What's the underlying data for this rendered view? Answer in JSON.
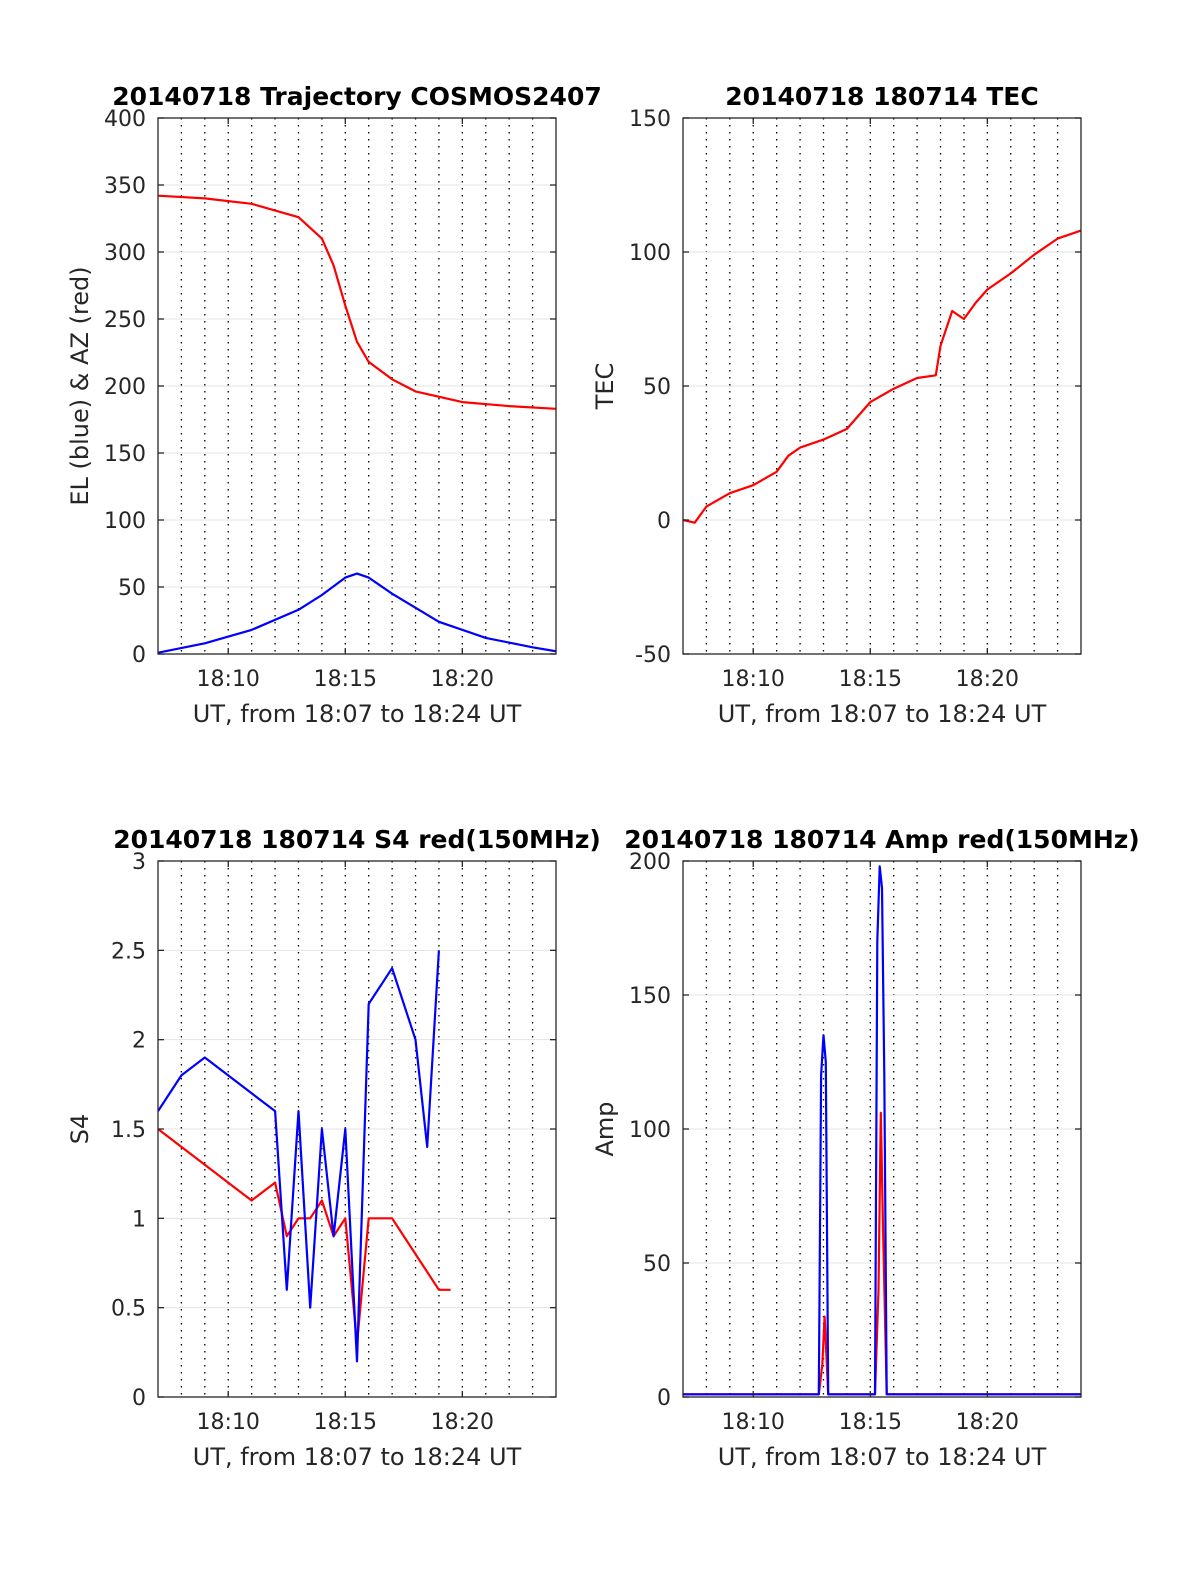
{
  "chart_data": [
    {
      "type": "line",
      "title": "20140718 Trajectory COSMOS2407",
      "xlabel": "UT, from 18:07 to 18:24 UT",
      "ylabel": "EL (blue) & AZ (red)",
      "xlim": [
        0,
        17
      ],
      "ylim": [
        0,
        400
      ],
      "xticks": [
        3,
        8,
        13
      ],
      "xticklabels": [
        "18:10",
        "18:15",
        "18:20"
      ],
      "yticks": [
        0,
        50,
        100,
        150,
        200,
        250,
        300,
        350,
        400
      ],
      "yticklabels": [
        "0",
        "50",
        "100",
        "150",
        "200",
        "250",
        "300",
        "350",
        "400"
      ],
      "grid": "dotted vertical lines every minute",
      "series": [
        {
          "color": "#ff0000",
          "x": [
            0,
            2,
            4,
            6,
            7,
            7.5,
            8,
            8.5,
            9,
            10,
            11,
            13,
            15,
            17
          ],
          "values": [
            342,
            340,
            336,
            326,
            310,
            290,
            260,
            233,
            218,
            205,
            196,
            188,
            185,
            183
          ]
        },
        {
          "color": "#0000ff",
          "x": [
            0,
            2,
            4,
            6,
            7,
            8,
            8.5,
            9,
            10,
            12,
            14,
            16,
            17
          ],
          "values": [
            1,
            8,
            18,
            33,
            44,
            57,
            60,
            57,
            45,
            24,
            12,
            5,
            2
          ]
        }
      ]
    },
    {
      "type": "line",
      "title": "20140718 180714 TEC",
      "xlabel": "UT, from 18:07 to 18:24 UT",
      "ylabel": "TEC",
      "xlim": [
        0,
        17
      ],
      "ylim": [
        -50,
        150
      ],
      "xticks": [
        3,
        8,
        13
      ],
      "xticklabels": [
        "18:10",
        "18:15",
        "18:20"
      ],
      "yticks": [
        -50,
        0,
        50,
        100,
        150
      ],
      "yticklabels": [
        "-50",
        "0",
        "50",
        "100",
        "150"
      ],
      "grid": "dotted vertical lines every minute",
      "series": [
        {
          "color": "#ff0000",
          "x": [
            0,
            0.5,
            1,
            2,
            3,
            4,
            4.5,
            5,
            6,
            7,
            8,
            9,
            10,
            10.8,
            11,
            11.5,
            12,
            12.5,
            13,
            14,
            15,
            16,
            17
          ],
          "values": [
            0,
            -1,
            5,
            10,
            13,
            18,
            24,
            27,
            30,
            34,
            44,
            49,
            53,
            54,
            65,
            78,
            75,
            81,
            86,
            92,
            99,
            105,
            108
          ]
        }
      ]
    },
    {
      "type": "line",
      "title": "20140718 180714 S4 red(150MHz)",
      "xlabel": "UT, from 18:07 to 18:24 UT",
      "ylabel": "S4",
      "xlim": [
        0,
        17
      ],
      "ylim": [
        0,
        3
      ],
      "xticks": [
        3,
        8,
        13
      ],
      "xticklabels": [
        "18:10",
        "18:15",
        "18:20"
      ],
      "yticks": [
        0,
        0.5,
        1,
        1.5,
        2,
        2.5,
        3
      ],
      "yticklabels": [
        "0",
        "0.5",
        "1",
        "1.5",
        "2",
        "2.5",
        "3"
      ],
      "grid": "dotted vertical lines every minute",
      "series": [
        {
          "color": "#ff0000",
          "x": [
            0,
            1,
            2,
            3,
            4,
            5,
            5.5,
            6,
            6.5,
            7,
            7.5,
            8,
            8.5,
            9,
            10,
            11,
            12,
            12.5
          ],
          "values": [
            1.5,
            1.4,
            1.3,
            1.2,
            1.1,
            1.2,
            0.9,
            1.0,
            1.0,
            1.1,
            0.9,
            1.0,
            0.3,
            1.0,
            1.0,
            0.8,
            0.6,
            0.6
          ]
        },
        {
          "color": "#0000ff",
          "x": [
            0,
            1,
            2,
            3,
            4,
            5,
            5.5,
            6,
            6.5,
            7,
            7.5,
            8,
            8.5,
            9,
            10,
            11,
            11.5,
            12
          ],
          "values": [
            1.6,
            1.8,
            1.9,
            1.8,
            1.7,
            1.6,
            0.6,
            1.6,
            0.5,
            1.5,
            0.9,
            1.5,
            0.2,
            2.2,
            2.4,
            2.0,
            1.4,
            2.5
          ]
        }
      ]
    },
    {
      "type": "line",
      "title": "20140718 180714 Amp red(150MHz)",
      "xlabel": "UT, from 18:07 to 18:24 UT",
      "ylabel": "Amp",
      "xlim": [
        0,
        17
      ],
      "ylim": [
        0,
        200
      ],
      "xticks": [
        3,
        8,
        13
      ],
      "xticklabels": [
        "18:10",
        "18:15",
        "18:20"
      ],
      "yticks": [
        0,
        50,
        100,
        150,
        200
      ],
      "yticklabels": [
        "0",
        "50",
        "100",
        "150",
        "200"
      ],
      "grid": "dotted vertical lines every minute",
      "series": [
        {
          "color": "#ff0000",
          "x": [
            0,
            5.8,
            5.95,
            6.05,
            6.2,
            8.2,
            8.35,
            8.45,
            8.55,
            8.7,
            17
          ],
          "values": [
            1,
            1,
            12,
            30,
            1,
            1,
            40,
            106,
            60,
            1,
            1
          ]
        },
        {
          "color": "#0000ff",
          "x": [
            0,
            5.8,
            5.9,
            6.0,
            6.1,
            6.2,
            8.2,
            8.3,
            8.4,
            8.5,
            8.6,
            8.7,
            17
          ],
          "values": [
            1,
            1,
            120,
            135,
            125,
            1,
            1,
            170,
            198,
            190,
            120,
            1,
            1
          ]
        }
      ]
    }
  ]
}
